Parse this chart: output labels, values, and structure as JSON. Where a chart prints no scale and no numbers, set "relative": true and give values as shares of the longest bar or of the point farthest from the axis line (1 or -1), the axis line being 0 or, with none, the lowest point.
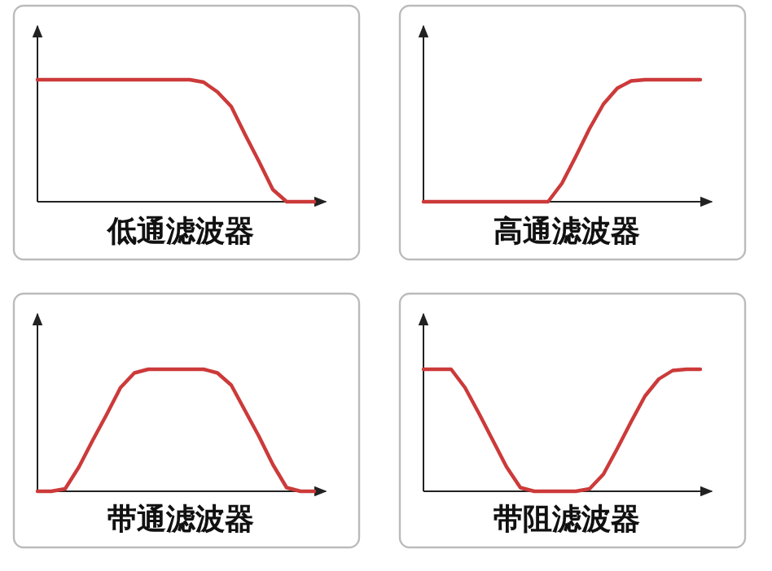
{
  "chart_data": [
    {
      "type": "line",
      "relative": true,
      "xlabel": "低通滤波器",
      "categories": [
        null,
        null,
        null,
        null,
        null,
        null,
        null,
        null,
        null,
        null,
        null,
        null,
        null,
        null,
        null,
        null,
        null,
        null,
        null,
        null,
        null
      ],
      "series": [
        {
          "color": "#cc3a3a",
          "values": [
            1,
            1,
            1,
            1,
            1,
            1,
            1,
            1,
            1,
            1,
            1,
            1,
            0.98,
            0.9,
            0.78,
            0.55,
            0.33,
            0.1,
            0,
            0,
            0
          ]
        }
      ]
    },
    {
      "type": "line",
      "relative": true,
      "xlabel": "高通滤波器",
      "categories": [
        null,
        null,
        null,
        null,
        null,
        null,
        null,
        null,
        null,
        null,
        null,
        null,
        null,
        null,
        null,
        null,
        null,
        null,
        null,
        null,
        null
      ],
      "series": [
        {
          "color": "#cc3a3a",
          "values": [
            0,
            0,
            0,
            0,
            0,
            0,
            0,
            0,
            0,
            0,
            0.15,
            0.37,
            0.6,
            0.8,
            0.93,
            0.99,
            1,
            1,
            1,
            1,
            1
          ]
        }
      ]
    },
    {
      "type": "line",
      "relative": true,
      "xlabel": "带通滤波器",
      "categories": [
        null,
        null,
        null,
        null,
        null,
        null,
        null,
        null,
        null,
        null,
        null,
        null,
        null,
        null,
        null,
        null,
        null,
        null,
        null,
        null,
        null
      ],
      "series": [
        {
          "color": "#cc3a3a",
          "values": [
            0,
            0,
            0.02,
            0.2,
            0.42,
            0.63,
            0.85,
            0.97,
            1,
            1,
            1,
            1,
            1,
            0.97,
            0.87,
            0.66,
            0.45,
            0.22,
            0.03,
            0,
            0
          ]
        }
      ]
    },
    {
      "type": "line",
      "relative": true,
      "xlabel": "带阻滤波器",
      "categories": [
        null,
        null,
        null,
        null,
        null,
        null,
        null,
        null,
        null,
        null,
        null,
        null,
        null,
        null,
        null,
        null,
        null,
        null,
        null,
        null,
        null
      ],
      "series": [
        {
          "color": "#cc3a3a",
          "values": [
            1,
            1,
            1,
            0.85,
            0.64,
            0.42,
            0.2,
            0.03,
            0,
            0,
            0,
            0,
            0.02,
            0.14,
            0.35,
            0.57,
            0.78,
            0.92,
            0.99,
            1,
            1
          ]
        }
      ]
    }
  ]
}
